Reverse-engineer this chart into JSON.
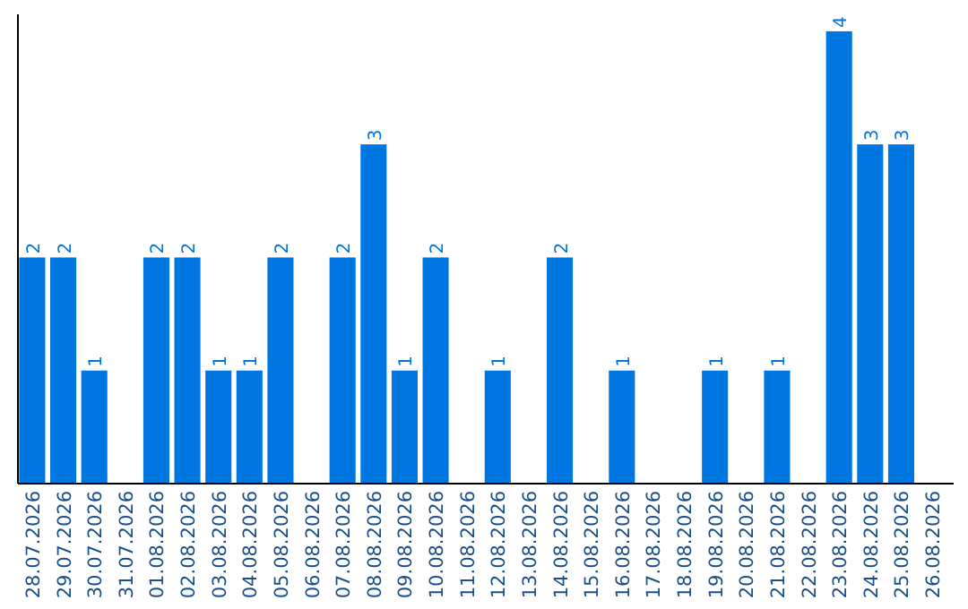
{
  "chart_data": {
    "type": "bar",
    "categories": [
      "28.07.2026",
      "29.07.2026",
      "30.07.2026",
      "31.07.2026",
      "01.08.2026",
      "02.08.2026",
      "03.08.2026",
      "04.08.2026",
      "05.08.2026",
      "06.08.2026",
      "07.08.2026",
      "08.08.2026",
      "09.08.2026",
      "10.08.2026",
      "11.08.2026",
      "12.08.2026",
      "13.08.2026",
      "14.08.2026",
      "15.08.2026",
      "16.08.2026",
      "17.08.2026",
      "18.08.2026",
      "19.08.2026",
      "20.08.2026",
      "21.08.2026",
      "22.08.2026",
      "23.08.2026",
      "24.08.2026",
      "25.08.2026",
      "26.08.2026"
    ],
    "values": [
      2,
      2,
      1,
      null,
      2,
      2,
      1,
      1,
      2,
      null,
      2,
      3,
      1,
      2,
      null,
      1,
      null,
      2,
      null,
      1,
      null,
      null,
      1,
      null,
      1,
      null,
      4,
      3,
      3,
      null
    ],
    "color": "#0077e0",
    "ylim": [
      0,
      4.15
    ],
    "data_labels": true,
    "tick_labels": "x"
  }
}
